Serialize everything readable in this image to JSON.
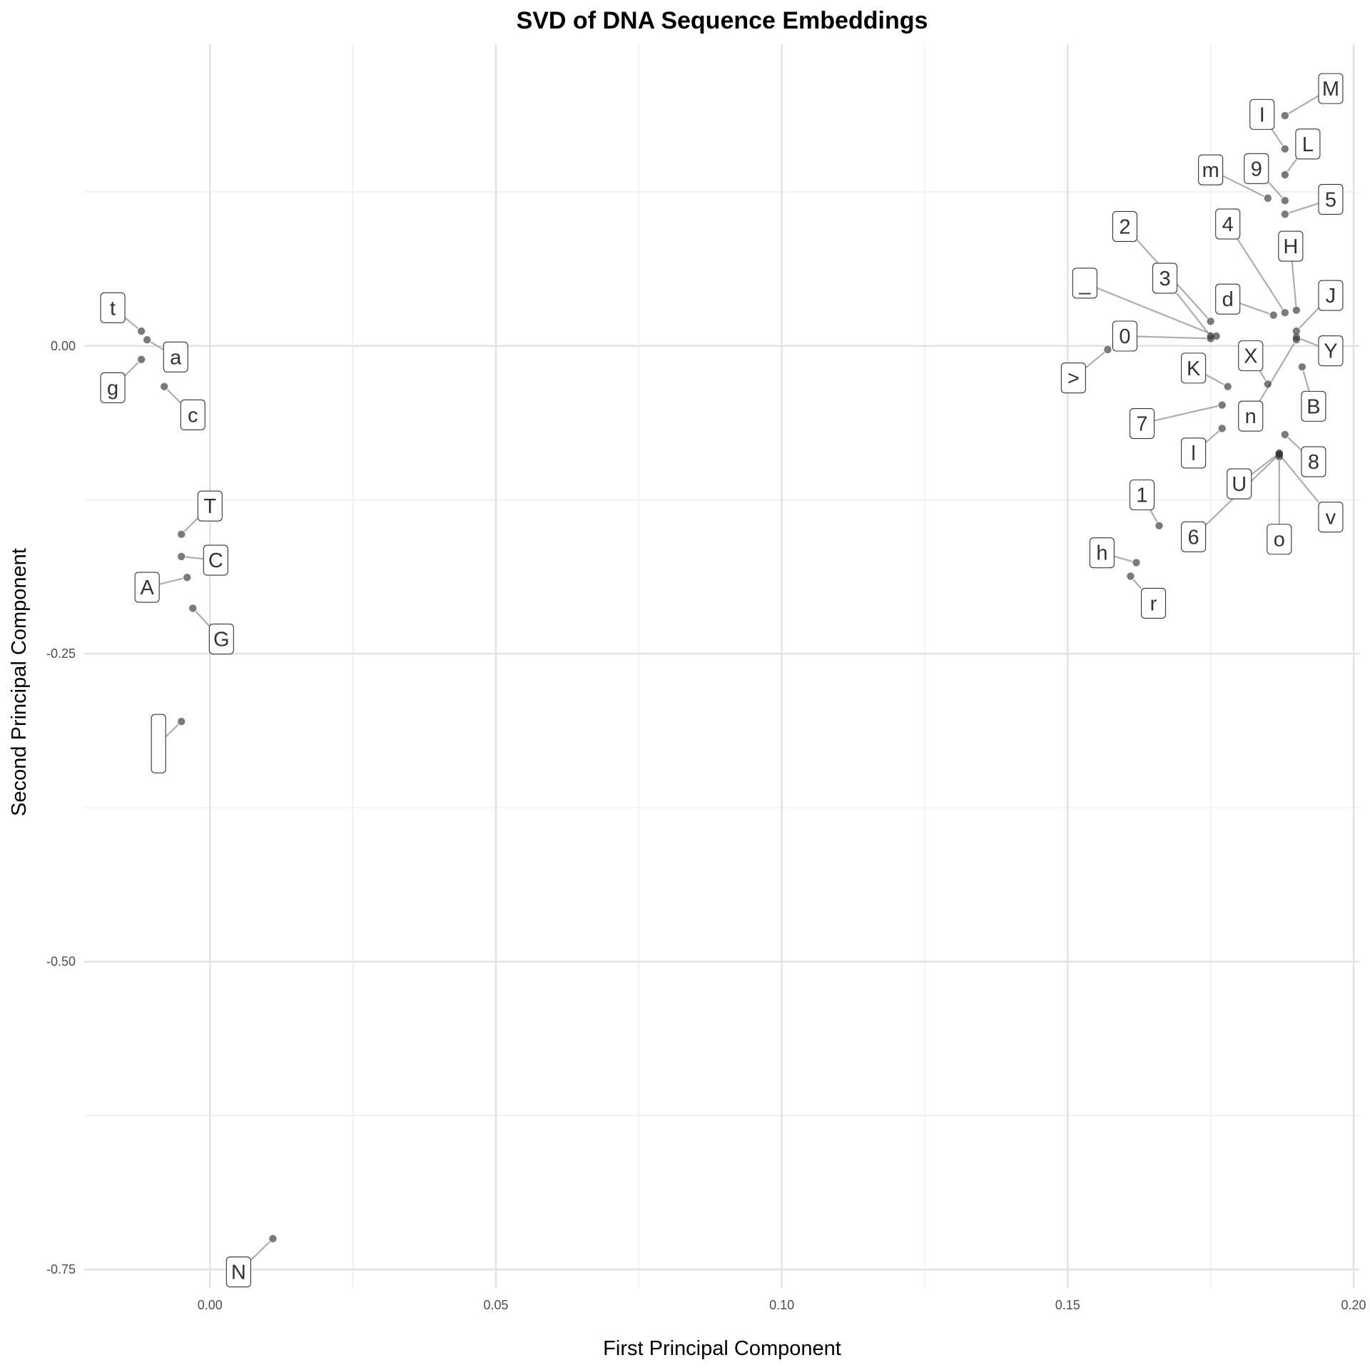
{
  "chart_data": {
    "type": "scatter",
    "title": "SVD of DNA Sequence Embeddings",
    "xlabel": "First Principal Component",
    "ylabel": "Second Principal Component",
    "xlim": [
      -0.022,
      0.201
    ],
    "ylim": [
      -0.765,
      0.245
    ],
    "xticks": [
      0.0,
      0.05,
      0.1,
      0.15,
      0.2
    ],
    "xtick_labels": [
      "0.00",
      "0.05",
      "0.10",
      "0.15",
      "0.20"
    ],
    "yticks": [
      0.0,
      -0.25,
      -0.5,
      -0.75
    ],
    "ytick_labels": [
      "0.00",
      "-0.25",
      "-0.50",
      "-0.75"
    ],
    "grid": true,
    "points": [
      {
        "label": "t",
        "x": -0.012,
        "y": 0.012,
        "lx": -0.017,
        "ly": 0.031
      },
      {
        "label": "a",
        "x": -0.011,
        "y": 0.005,
        "lx": -0.006,
        "ly": -0.009
      },
      {
        "label": "g",
        "x": -0.012,
        "y": -0.011,
        "lx": -0.017,
        "ly": -0.034
      },
      {
        "label": "c",
        "x": -0.008,
        "y": -0.033,
        "lx": -0.003,
        "ly": -0.056
      },
      {
        "label": "T",
        "x": -0.005,
        "y": -0.153,
        "lx": 0.0,
        "ly": -0.13
      },
      {
        "label": "C",
        "x": -0.005,
        "y": -0.171,
        "lx": 0.001,
        "ly": -0.174
      },
      {
        "label": "A",
        "x": -0.004,
        "y": -0.188,
        "lx": -0.011,
        "ly": -0.196
      },
      {
        "label": "G",
        "x": -0.003,
        "y": -0.213,
        "lx": 0.002,
        "ly": -0.238
      },
      {
        "label": "",
        "x": -0.005,
        "y": -0.305,
        "lx": -0.009,
        "ly": -0.323
      },
      {
        "label": "N",
        "x": 0.011,
        "y": -0.725,
        "lx": 0.005,
        "ly": -0.752
      },
      {
        "label": "M",
        "x": 0.188,
        "y": 0.187,
        "lx": 0.196,
        "ly": 0.209
      },
      {
        "label": "I",
        "x": 0.188,
        "y": 0.16,
        "lx": 0.184,
        "ly": 0.188
      },
      {
        "label": "L",
        "x": 0.188,
        "y": 0.139,
        "lx": 0.192,
        "ly": 0.164
      },
      {
        "label": "m",
        "x": 0.185,
        "y": 0.12,
        "lx": 0.175,
        "ly": 0.143
      },
      {
        "label": "9",
        "x": 0.188,
        "y": 0.118,
        "lx": 0.183,
        "ly": 0.144
      },
      {
        "label": "5",
        "x": 0.188,
        "y": 0.107,
        "lx": 0.196,
        "ly": 0.119
      },
      {
        "label": "2",
        "x": 0.175,
        "y": 0.02,
        "lx": 0.16,
        "ly": 0.097
      },
      {
        "label": "4",
        "x": 0.188,
        "y": 0.027,
        "lx": 0.178,
        "ly": 0.099
      },
      {
        "label": "H",
        "x": 0.19,
        "y": 0.029,
        "lx": 0.189,
        "ly": 0.081
      },
      {
        "label": "3",
        "x": 0.175,
        "y": 0.008,
        "lx": 0.167,
        "ly": 0.055
      },
      {
        "label": "_",
        "x": 0.176,
        "y": 0.008,
        "lx": 0.153,
        "ly": 0.051
      },
      {
        "label": "d",
        "x": 0.186,
        "y": 0.025,
        "lx": 0.178,
        "ly": 0.038
      },
      {
        "label": "J",
        "x": 0.19,
        "y": 0.012,
        "lx": 0.196,
        "ly": 0.041
      },
      {
        "label": "0",
        "x": 0.175,
        "y": 0.006,
        "lx": 0.16,
        "ly": 0.008
      },
      {
        "label": "Y",
        "x": 0.19,
        "y": 0.007,
        "lx": 0.196,
        "ly": -0.004
      },
      {
        "label": ">",
        "x": 0.157,
        "y": -0.003,
        "lx": 0.151,
        "ly": -0.026
      },
      {
        "label": "X",
        "x": 0.185,
        "y": -0.031,
        "lx": 0.182,
        "ly": -0.008
      },
      {
        "label": "K",
        "x": 0.178,
        "y": -0.033,
        "lx": 0.172,
        "ly": -0.018
      },
      {
        "label": "B",
        "x": 0.191,
        "y": -0.017,
        "lx": 0.193,
        "ly": -0.049
      },
      {
        "label": "7",
        "x": 0.177,
        "y": -0.048,
        "lx": 0.163,
        "ly": -0.063
      },
      {
        "label": "n",
        "x": 0.19,
        "y": 0.005,
        "lx": 0.182,
        "ly": -0.057
      },
      {
        "label": "l",
        "x": 0.177,
        "y": -0.067,
        "lx": 0.172,
        "ly": -0.087
      },
      {
        "label": "8",
        "x": 0.188,
        "y": -0.072,
        "lx": 0.193,
        "ly": -0.094
      },
      {
        "label": "U",
        "x": 0.187,
        "y": -0.087,
        "lx": 0.18,
        "ly": -0.112
      },
      {
        "label": "v",
        "x": 0.187,
        "y": -0.088,
        "lx": 0.196,
        "ly": -0.139
      },
      {
        "label": "1",
        "x": 0.166,
        "y": -0.146,
        "lx": 0.163,
        "ly": -0.121
      },
      {
        "label": "6",
        "x": 0.187,
        "y": -0.088,
        "lx": 0.172,
        "ly": -0.155
      },
      {
        "label": "o",
        "x": 0.187,
        "y": -0.09,
        "lx": 0.187,
        "ly": -0.157
      },
      {
        "label": "h",
        "x": 0.162,
        "y": -0.176,
        "lx": 0.156,
        "ly": -0.168
      },
      {
        "label": "r",
        "x": 0.161,
        "y": -0.187,
        "lx": 0.165,
        "ly": -0.209
      }
    ]
  }
}
